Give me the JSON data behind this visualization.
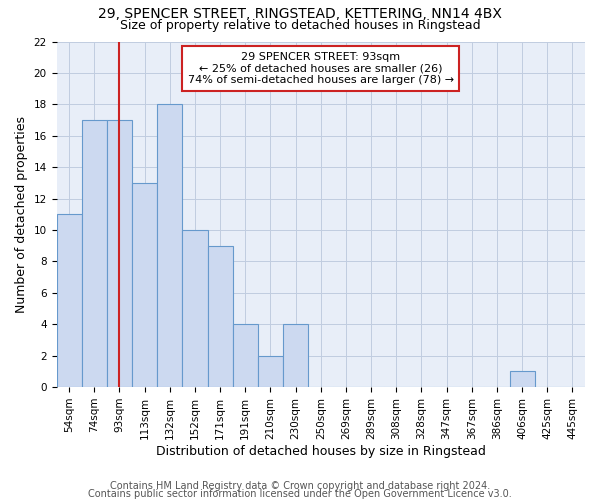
{
  "title_line1": "29, SPENCER STREET, RINGSTEAD, KETTERING, NN14 4BX",
  "title_line2": "Size of property relative to detached houses in Ringstead",
  "xlabel": "Distribution of detached houses by size in Ringstead",
  "ylabel": "Number of detached properties",
  "categories": [
    "54sqm",
    "74sqm",
    "93sqm",
    "113sqm",
    "132sqm",
    "152sqm",
    "171sqm",
    "191sqm",
    "210sqm",
    "230sqm",
    "250sqm",
    "269sqm",
    "289sqm",
    "308sqm",
    "328sqm",
    "347sqm",
    "367sqm",
    "386sqm",
    "406sqm",
    "425sqm",
    "445sqm"
  ],
  "values": [
    11,
    17,
    17,
    13,
    18,
    10,
    9,
    4,
    2,
    4,
    0,
    0,
    0,
    0,
    0,
    0,
    0,
    0,
    1,
    0,
    0
  ],
  "bar_color": "#ccd9f0",
  "bar_edge_color": "#6699cc",
  "highlight_index": 2,
  "highlight_line_color": "#cc2222",
  "annotation_line1": "29 SPENCER STREET: 93sqm",
  "annotation_line2": "← 25% of detached houses are smaller (26)",
  "annotation_line3": "74% of semi-detached houses are larger (78) →",
  "annotation_box_color": "#cc2222",
  "ylim": [
    0,
    22
  ],
  "yticks": [
    0,
    2,
    4,
    6,
    8,
    10,
    12,
    14,
    16,
    18,
    20,
    22
  ],
  "grid_color": "#c0cce0",
  "background_color": "#e8eef8",
  "fig_background": "#ffffff",
  "footer_line1": "Contains HM Land Registry data © Crown copyright and database right 2024.",
  "footer_line2": "Contains public sector information licensed under the Open Government Licence v3.0.",
  "title_fontsize": 10,
  "subtitle_fontsize": 9,
  "axis_label_fontsize": 9,
  "tick_fontsize": 7.5,
  "annotation_fontsize": 8,
  "footer_fontsize": 7
}
